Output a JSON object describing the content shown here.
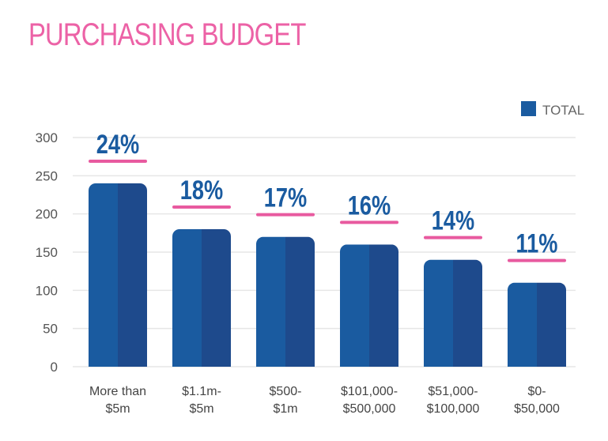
{
  "chart_data": {
    "type": "bar",
    "title": "PURCHASING BUDGET",
    "categories": [
      [
        "More than",
        "$5m"
      ],
      [
        "$1.1m-",
        "$5m"
      ],
      [
        "$500-",
        "$1m"
      ],
      [
        "$101,000-",
        "$500,000"
      ],
      [
        "$51,000-",
        "$100,000"
      ],
      [
        "$0-",
        "$50,000"
      ]
    ],
    "series": [
      {
        "name": "TOTAL",
        "values": [
          240,
          180,
          170,
          160,
          140,
          110
        ]
      }
    ],
    "data_labels": [
      "24%",
      "18%",
      "17%",
      "16%",
      "14%",
      "11%"
    ],
    "yticks": [
      0,
      50,
      100,
      150,
      200,
      250,
      300
    ],
    "ylim": [
      0,
      300
    ],
    "grid": true,
    "legend": "top-right",
    "colors": {
      "title": "#ec62a6",
      "bar_left": "#1a5ba0",
      "bar_right": "#1e4a8c",
      "underline": "#e85a9f",
      "label": "#1a5ba0",
      "grid": "#e6e6e6"
    }
  }
}
